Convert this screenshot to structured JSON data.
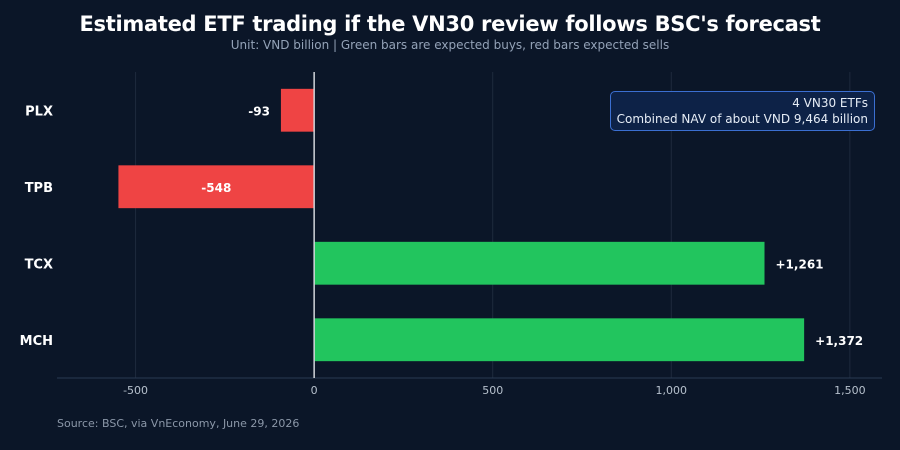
{
  "title": "Estimated ETF trading if the VN30 review follows BSC's forecast",
  "subtitle": "Unit: VND billion | Green bars are expected buys, red bars expected sells",
  "source": "Source: BSC, via VnEconomy, June 29, 2026",
  "annotation": {
    "line1": "4 VN30 ETFs",
    "line2": "Combined NAV of about VND 9,464 billion"
  },
  "colors": {
    "background": "#0b1628",
    "buy": "#22c55e",
    "sell": "#ef4444",
    "grid": "#1e2a3d",
    "zero_line": "#d1d5db"
  },
  "chart_data": {
    "type": "bar",
    "orientation": "horizontal",
    "categories": [
      "PLX",
      "TPB",
      "TCX",
      "MCH"
    ],
    "values": [
      -93,
      -548,
      1261,
      1372
    ],
    "value_labels": [
      "-93",
      "-548",
      "+1,261",
      "+1,372"
    ],
    "xlim": [
      -720,
      1590
    ],
    "xticks": [
      -500,
      0,
      500,
      1000,
      1500
    ],
    "xtick_labels": [
      "-500",
      "0",
      "500",
      "1,000",
      "1,500"
    ],
    "grid": true,
    "legend": "none"
  }
}
